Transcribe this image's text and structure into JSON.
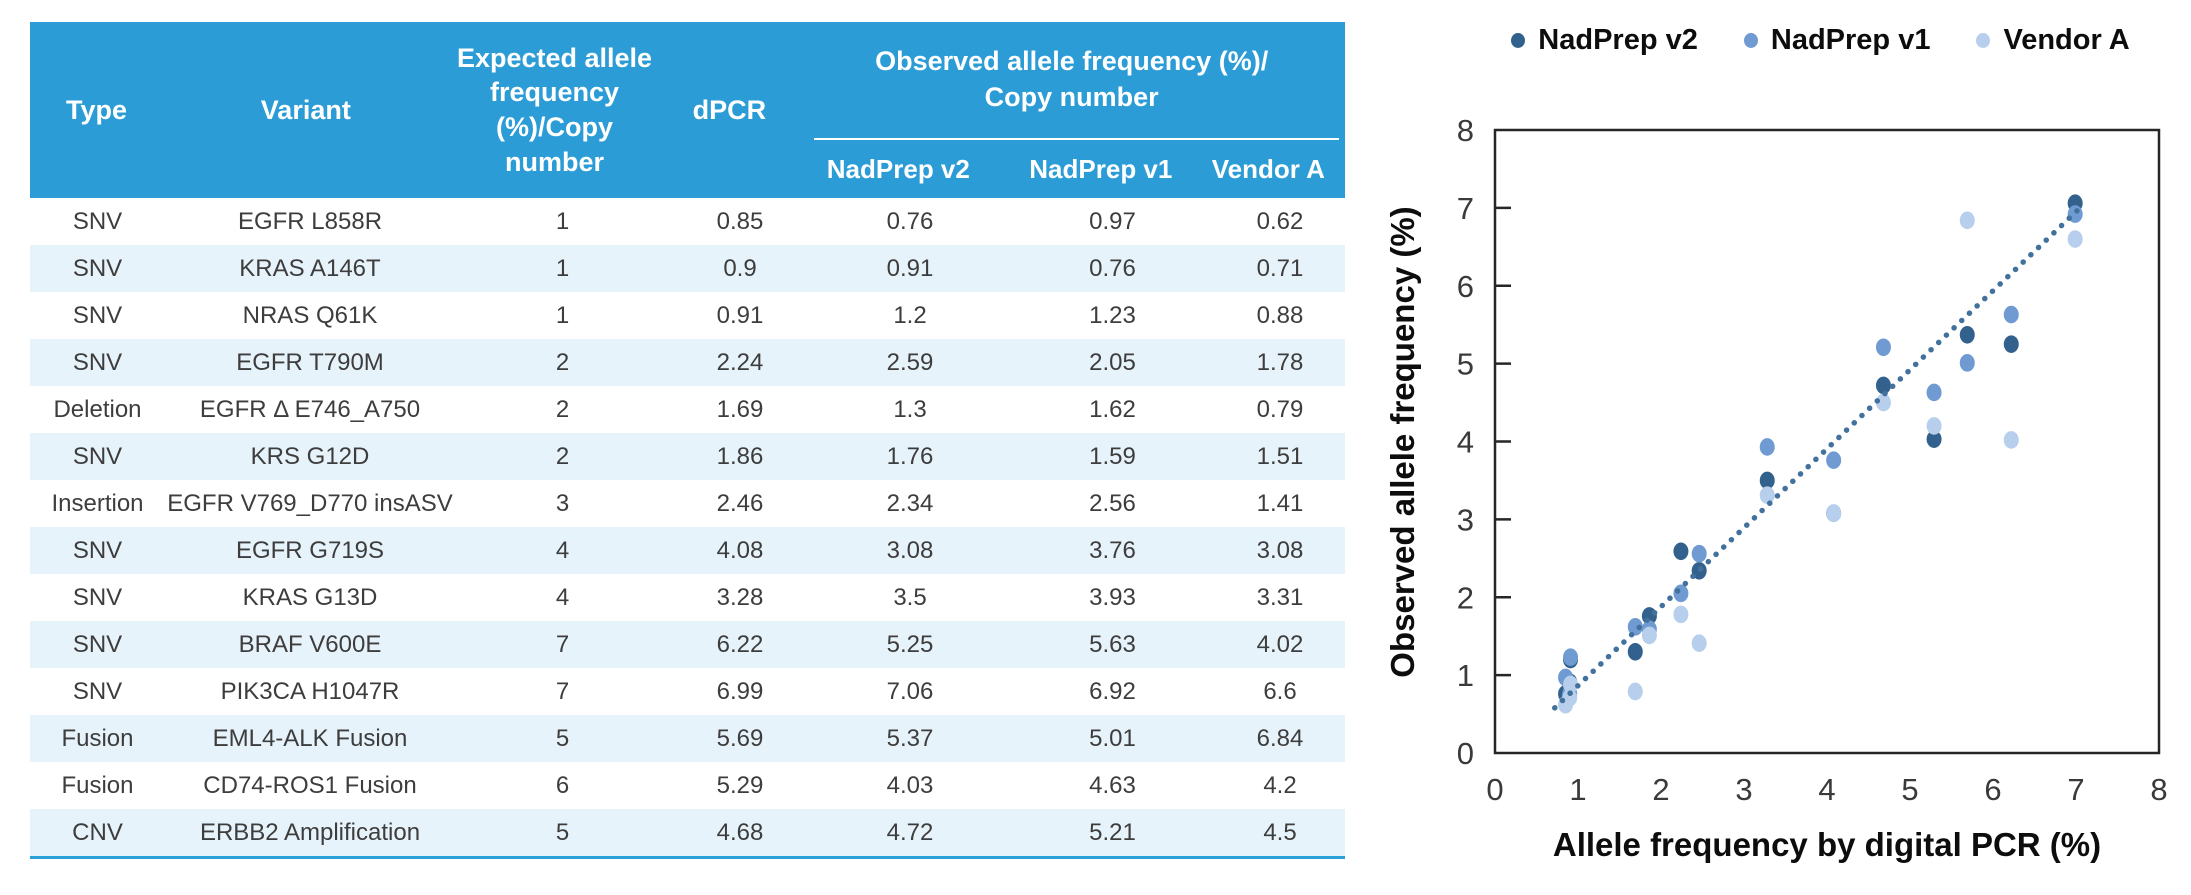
{
  "table": {
    "col_headers": {
      "type": "Type",
      "variant": "Variant",
      "expected": "Expected allele frequency (%)/Copy number",
      "dpcr": "dPCR",
      "observed_line1": "Observed allele frequency (%)/",
      "observed_line2": "Copy number",
      "sub_nadprep_v2": "NadPrep v2",
      "sub_nadprep_v1": "NadPrep v1",
      "sub_vendor_a": "Vendor A"
    },
    "rows": [
      {
        "type": "SNV",
        "variant": "EGFR L858R",
        "expected": "1",
        "dpcr": "0.85",
        "nadprep_v2": "0.76",
        "nadprep_v1": "0.97",
        "vendor_a": "0.62"
      },
      {
        "type": "SNV",
        "variant": "KRAS A146T",
        "expected": "1",
        "dpcr": "0.9",
        "nadprep_v2": "0.91",
        "nadprep_v1": "0.76",
        "vendor_a": "0.71"
      },
      {
        "type": "SNV",
        "variant": "NRAS Q61K",
        "expected": "1",
        "dpcr": "0.91",
        "nadprep_v2": "1.2",
        "nadprep_v1": "1.23",
        "vendor_a": "0.88"
      },
      {
        "type": "SNV",
        "variant": "EGFR T790M",
        "expected": "2",
        "dpcr": "2.24",
        "nadprep_v2": "2.59",
        "nadprep_v1": "2.05",
        "vendor_a": "1.78"
      },
      {
        "type": "Deletion",
        "variant": "EGFR Δ E746_A750",
        "expected": "2",
        "dpcr": "1.69",
        "nadprep_v2": "1.3",
        "nadprep_v1": "1.62",
        "vendor_a": "0.79"
      },
      {
        "type": "SNV",
        "variant": "KRS G12D",
        "expected": "2",
        "dpcr": "1.86",
        "nadprep_v2": "1.76",
        "nadprep_v1": "1.59",
        "vendor_a": "1.51"
      },
      {
        "type": "Insertion",
        "variant": "EGFR V769_D770 insASV",
        "expected": "3",
        "dpcr": "2.46",
        "nadprep_v2": "2.34",
        "nadprep_v1": "2.56",
        "vendor_a": "1.41"
      },
      {
        "type": "SNV",
        "variant": "EGFR G719S",
        "expected": "4",
        "dpcr": "4.08",
        "nadprep_v2": "3.08",
        "nadprep_v1": "3.76",
        "vendor_a": "3.08"
      },
      {
        "type": "SNV",
        "variant": "KRAS G13D",
        "expected": "4",
        "dpcr": "3.28",
        "nadprep_v2": "3.5",
        "nadprep_v1": "3.93",
        "vendor_a": "3.31"
      },
      {
        "type": "SNV",
        "variant": "BRAF V600E",
        "expected": "7",
        "dpcr": "6.22",
        "nadprep_v2": "5.25",
        "nadprep_v1": "5.63",
        "vendor_a": "4.02"
      },
      {
        "type": "SNV",
        "variant": "PIK3CA H1047R",
        "expected": "7",
        "dpcr": "6.99",
        "nadprep_v2": "7.06",
        "nadprep_v1": "6.92",
        "vendor_a": "6.6"
      },
      {
        "type": "Fusion",
        "variant": "EML4-ALK Fusion",
        "expected": "5",
        "dpcr": "5.69",
        "nadprep_v2": "5.37",
        "nadprep_v1": "5.01",
        "vendor_a": "6.84"
      },
      {
        "type": "Fusion",
        "variant": "CD74-ROS1 Fusion",
        "expected": "6",
        "dpcr": "5.29",
        "nadprep_v2": "4.03",
        "nadprep_v1": "4.63",
        "vendor_a": "4.2"
      },
      {
        "type": "CNV",
        "variant": "ERBB2 Amplification",
        "expected": "5",
        "dpcr": "4.68",
        "nadprep_v2": "4.72",
        "nadprep_v1": "5.21",
        "vendor_a": "4.5"
      }
    ]
  },
  "chart_data": {
    "type": "scatter",
    "xlabel": "Allele frequency by digital PCR (%)",
    "ylabel": "Observed allele frequency (%)",
    "xlim": [
      0,
      8
    ],
    "ylim": [
      0,
      8
    ],
    "xticks": [
      0,
      1,
      2,
      3,
      4,
      5,
      6,
      7,
      8
    ],
    "yticks": [
      0,
      1,
      2,
      3,
      4,
      5,
      6,
      7,
      8
    ],
    "grid": false,
    "legend_position": "top",
    "series": [
      {
        "name": "NadPrep v2",
        "color": "#33618d",
        "x": [
          0.85,
          0.9,
          0.91,
          2.24,
          1.69,
          1.86,
          2.46,
          4.08,
          3.28,
          6.22,
          6.99,
          5.69,
          5.29,
          4.68
        ],
        "y": [
          0.76,
          0.91,
          1.2,
          2.59,
          1.3,
          1.76,
          2.34,
          3.08,
          3.5,
          5.25,
          7.06,
          5.37,
          4.03,
          4.72
        ]
      },
      {
        "name": "NadPrep v1",
        "color": "#6f9bd2",
        "x": [
          0.85,
          0.9,
          0.91,
          2.24,
          1.69,
          1.86,
          2.46,
          4.08,
          3.28,
          6.22,
          6.99,
          5.69,
          5.29,
          4.68
        ],
        "y": [
          0.97,
          0.76,
          1.23,
          2.05,
          1.62,
          1.59,
          2.56,
          3.76,
          3.93,
          5.63,
          6.92,
          5.01,
          4.63,
          5.21
        ]
      },
      {
        "name": "Vendor A",
        "color": "#b7cfec",
        "x": [
          0.85,
          0.9,
          0.91,
          2.24,
          1.69,
          1.86,
          2.46,
          4.08,
          3.28,
          6.22,
          6.99,
          5.69,
          5.29,
          4.68
        ],
        "y": [
          0.62,
          0.71,
          0.88,
          1.78,
          0.79,
          1.51,
          1.41,
          3.08,
          3.31,
          4.02,
          6.6,
          6.84,
          4.2,
          4.5
        ]
      }
    ],
    "trendline": {
      "style": "dotted",
      "color": "#41719c",
      "x1": 0.72,
      "y1": 0.58,
      "x2": 7.02,
      "y2": 6.97
    }
  },
  "colors": {
    "table_header_bg": "#2b9cd5",
    "table_row_alt": "#e7f3fb",
    "table_bottom_border": "#29a0d8",
    "table_text": "#3d3d3d",
    "axis_text": "#3a3a3a"
  }
}
